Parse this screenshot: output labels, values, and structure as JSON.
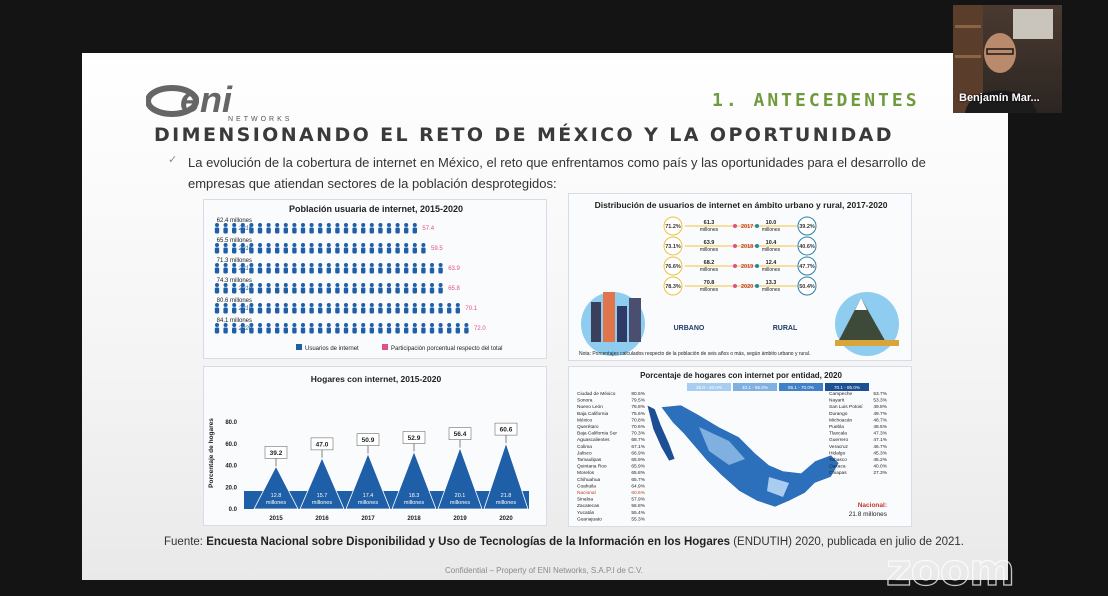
{
  "presenter": {
    "name": "Benjamín Mar..."
  },
  "watermark": "zoom",
  "slide": {
    "logo_text": "eni",
    "logo_subtext": "NETWORKS",
    "section_title": "1. ANTECEDENTES",
    "main_title": "DIMENSIONANDO EL RETO DE MÉXICO Y LA OPORTUNIDAD",
    "bullet_mark": "✓",
    "bullet_text": "La evolución de la cobertura de internet en México, el reto que enfrentamos como país y las oportunidades para el desarrollo de empresas que atiendan sectores de la población desprotegidos:",
    "source_prefix": "Fuente:",
    "source_bold": "Encuesta Nacional sobre Disponibilidad y Uso de Tecnologías de la Información en los Hogares",
    "source_suffix": "(ENDUTIH) 2020, publicada en julio de 2021.",
    "confidential": "Confidential – Property of ENI Networks, S.A.P.I de C.V.",
    "colors": {
      "accent_green": "#6f9a3d",
      "chart_blue": "#1f5fa8",
      "chart_pink": "#e0508a",
      "map_blue": "#2c6fbb"
    }
  },
  "chart_data": [
    {
      "type": "bar",
      "title": "Población usuaria de internet, 2015-2020",
      "categories": [
        "2015",
        "2016",
        "2017",
        "2018",
        "2019",
        "2020"
      ],
      "users_labels": [
        "62.4 millones",
        "65.5 millones",
        "71.3 millones",
        "74.3 millones",
        "80.6 millones",
        "84.1 millones"
      ],
      "series": [
        {
          "name": "Participación porcentual respecto del total",
          "values": [
            57.4,
            59.5,
            63.9,
            65.8,
            70.1,
            72.0
          ]
        }
      ],
      "legend": [
        "Usuarios de internet",
        "Participación porcentual respecto del total"
      ]
    },
    {
      "type": "table",
      "title": "Distribución de usuarios de internet en ámbito urbano y rural, 2017-2020",
      "years": [
        "2017",
        "2018",
        "2019",
        "2020"
      ],
      "urbano_pct": [
        "71.2%",
        "73.1%",
        "76.6%",
        "78.3%"
      ],
      "rural_pct": [
        "39.2%",
        "40.6%",
        "47.7%",
        "50.4%"
      ],
      "urbano_millones": [
        "61.3",
        "63.9",
        "68.2",
        "70.8"
      ],
      "rural_millones": [
        "10.0",
        "10.4",
        "12.4",
        "13.3"
      ],
      "unit": "millones",
      "labels": [
        "URBANO",
        "RURAL"
      ],
      "note": "Nota: Porcentajes calculados respecto de la población de seis años o más, según ámbito urbano y rural."
    },
    {
      "type": "area",
      "title": "Hogares con internet, 2015-2020",
      "ylabel": "Porcentaje de hogares",
      "ylim": [
        0,
        80
      ],
      "yticks": [
        "80.0",
        "60.0",
        "40.0",
        "20.0",
        "0.0"
      ],
      "categories": [
        "2015",
        "2016",
        "2017",
        "2018",
        "2019",
        "2020"
      ],
      "values": [
        39.2,
        47.0,
        50.9,
        52.9,
        56.4,
        60.6
      ],
      "value_labels": [
        "39.2",
        "47.0",
        "50.9",
        "52.9",
        "56.4",
        "60.6"
      ],
      "households": [
        "12.8",
        "15.7",
        "17.4",
        "18.3",
        "20.1",
        "21.8"
      ],
      "unit": "millones"
    },
    {
      "type": "table",
      "title": "Porcentaje de hogares con internet por entidad, 2020",
      "legend": [
        "25.0 - 40.0%",
        "40.1 - 55.0%",
        "55.1 - 70.0%",
        "70.1 - 85.0%"
      ],
      "left_states": [
        [
          "Ciudad de México",
          "80.5%"
        ],
        [
          "Sonora",
          "79.5%"
        ],
        [
          "Nuevo León",
          "78.8%"
        ],
        [
          "Baja California",
          "75.6%"
        ],
        [
          "México",
          "70.8%"
        ],
        [
          "Querétaro",
          "70.6%"
        ],
        [
          "Baja California Sur",
          "70.3%"
        ],
        [
          "Aguascalientes",
          "68.7%"
        ],
        [
          "Colima",
          "67.1%"
        ],
        [
          "Jalisco",
          "66.9%"
        ],
        [
          "Tamaulipas",
          "65.9%"
        ],
        [
          "Quintana Roo",
          "65.9%"
        ],
        [
          "Morelos",
          "65.8%"
        ],
        [
          "Chihuahua",
          "65.7%"
        ],
        [
          "Coahuila",
          "64.9%"
        ],
        [
          "Nacional",
          "60.6%"
        ],
        [
          "Sinaloa",
          "57.9%"
        ],
        [
          "Zacatecas",
          "56.8%"
        ],
        [
          "Yucatán",
          "55.4%"
        ],
        [
          "Guanajuato",
          "55.3%"
        ]
      ],
      "right_states": [
        [
          "Campeche",
          "53.7%"
        ],
        [
          "Nayarit",
          "53.3%"
        ],
        [
          "San Luis Potosí",
          "49.8%"
        ],
        [
          "Durango",
          "49.7%"
        ],
        [
          "Michoacán",
          "48.7%"
        ],
        [
          "Puebla",
          "48.5%"
        ],
        [
          "Tlaxcala",
          "47.3%"
        ],
        [
          "Guerrero",
          "47.1%"
        ],
        [
          "Veracruz",
          "46.7%"
        ],
        [
          "Hidalgo",
          "45.3%"
        ],
        [
          "Tabasco",
          "45.2%"
        ],
        [
          "Oaxaca",
          "40.0%"
        ],
        [
          "Chiapas",
          "27.3%"
        ]
      ],
      "national_label": "Nacional:",
      "national_value": "21.8 millones"
    }
  ]
}
